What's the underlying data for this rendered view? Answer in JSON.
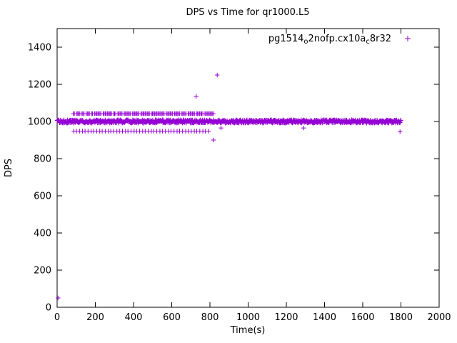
{
  "window": {
    "background": "#ffffff"
  },
  "chart_data": {
    "type": "scatter",
    "title": "DPS vs Time for qr1000.L5",
    "xlabel": "Time(s)",
    "ylabel": "DPS",
    "xlim": [
      0,
      2000
    ],
    "ylim": [
      0,
      1500
    ],
    "xticks": [
      0,
      200,
      400,
      600,
      800,
      1000,
      1200,
      1400,
      1600,
      1800,
      2000
    ],
    "yticks": [
      0,
      200,
      400,
      600,
      800,
      1000,
      1200,
      1400
    ],
    "grid": false,
    "marker": "plus",
    "legend": {
      "position": "top-right",
      "label": "pg1514_o2nofp.cx10a_c8r32",
      "label_parts": [
        {
          "text": "pg1514"
        },
        {
          "text": "o",
          "sub": true
        },
        {
          "text": "2nofp.cx10a"
        },
        {
          "text": "c",
          "sub": true
        },
        {
          "text": "8r32"
        }
      ]
    },
    "series": [
      {
        "name": "pg1514_o2nofp.cx10a_c8r32",
        "color": "#9400D3",
        "dense_band": {
          "y_center": 1000,
          "y_jitter": 9,
          "x_start": 0,
          "x_end": 1800,
          "x_step": 2
        },
        "clusters": [
          {
            "y": 1042,
            "x": [
              85,
              90,
              103,
              108,
              113,
              119,
              130,
              135,
              141,
              152,
              158,
              163,
              169,
              180,
              185,
              196,
              202,
              207,
              213,
              218,
              224,
              229,
              241,
              246,
              252,
              257,
              263,
              268,
              274,
              279,
              285,
              296,
              301,
              307,
              318,
              323,
              329,
              334,
              340,
              351,
              356,
              362,
              367,
              373,
              378,
              384,
              395,
              400,
              406,
              411,
              417,
              422,
              428,
              439,
              444,
              450,
              455,
              461,
              466,
              472,
              477,
              483,
              494,
              499,
              505,
              510,
              516,
              521,
              527,
              532,
              538,
              543,
              549,
              554,
              560,
              571,
              576,
              582,
              587,
              593,
              598,
              604,
              615,
              620,
              626,
              631,
              637,
              642,
              653,
              658,
              664,
              669,
              675,
              686,
              691,
              697,
              702,
              708,
              713,
              719,
              730,
              735,
              741,
              746,
              752,
              757,
              763,
              774,
              779,
              785,
              790,
              796,
              801,
              807,
              812,
              818
            ]
          },
          {
            "y": 948,
            "x": [
              88,
              101,
              117,
              133,
              146,
              162,
              178,
              191,
              207,
              223,
              236,
              252,
              268,
              281,
              297,
              313,
              326,
              342,
              358,
              371,
              387,
              403,
              416,
              432,
              448,
              461,
              477,
              493,
              506,
              522,
              538,
              551,
              567,
              583,
              596,
              612,
              628,
              641,
              657,
              673,
              686,
              702,
              718,
              731,
              747,
              763,
              776,
              792
            ]
          }
        ],
        "outliers": [
          [
            5,
            50
          ],
          [
            728,
            1135
          ],
          [
            838,
            1250
          ],
          [
            818,
            900
          ],
          [
            858,
            965
          ],
          [
            1290,
            965
          ],
          [
            1795,
            945
          ]
        ]
      }
    ]
  }
}
